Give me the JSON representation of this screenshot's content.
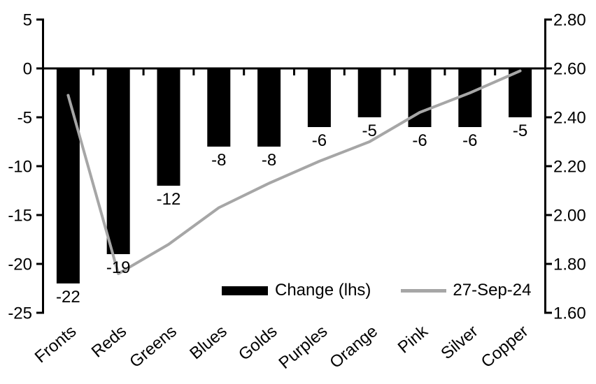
{
  "chart_data": {
    "type": "bar+line",
    "title": "",
    "categories": [
      "Fronts",
      "Reds",
      "Greens",
      "Blues",
      "Golds",
      "Purples",
      "Orange",
      "Pink",
      "Silver",
      "Copper"
    ],
    "series": [
      {
        "name": "Change (lhs)",
        "type": "bar",
        "axis": "left",
        "values": [
          -22,
          -19,
          -12,
          -8,
          -8,
          -6,
          -5,
          -6,
          -6,
          -5
        ],
        "data_labels": [
          "-22",
          "-19",
          "-12",
          "-8",
          "-8",
          "-6",
          "-5",
          "-6",
          "-6",
          "-5"
        ],
        "color": "#000000"
      },
      {
        "name": "27-Sep-24",
        "type": "line",
        "axis": "right",
        "values": [
          2.49,
          1.76,
          1.88,
          2.03,
          2.13,
          2.22,
          2.3,
          2.42,
          2.5,
          2.59
        ],
        "color": "#a6a6a6"
      }
    ],
    "left_axis": {
      "min": -25,
      "max": 5,
      "tick_step": 5,
      "ticks": [
        "5",
        "0",
        "-5",
        "-10",
        "-15",
        "-20",
        "-25"
      ]
    },
    "right_axis": {
      "min": 1.6,
      "max": 2.8,
      "tick_step": 0.2,
      "ticks": [
        "2.80",
        "2.60",
        "2.40",
        "2.20",
        "2.00",
        "1.80",
        "1.60"
      ]
    },
    "legend": {
      "position": "bottom-inside"
    },
    "grid": "off",
    "colors": {
      "text": "#000000",
      "axis": "#000000",
      "background": "#ffffff"
    }
  }
}
